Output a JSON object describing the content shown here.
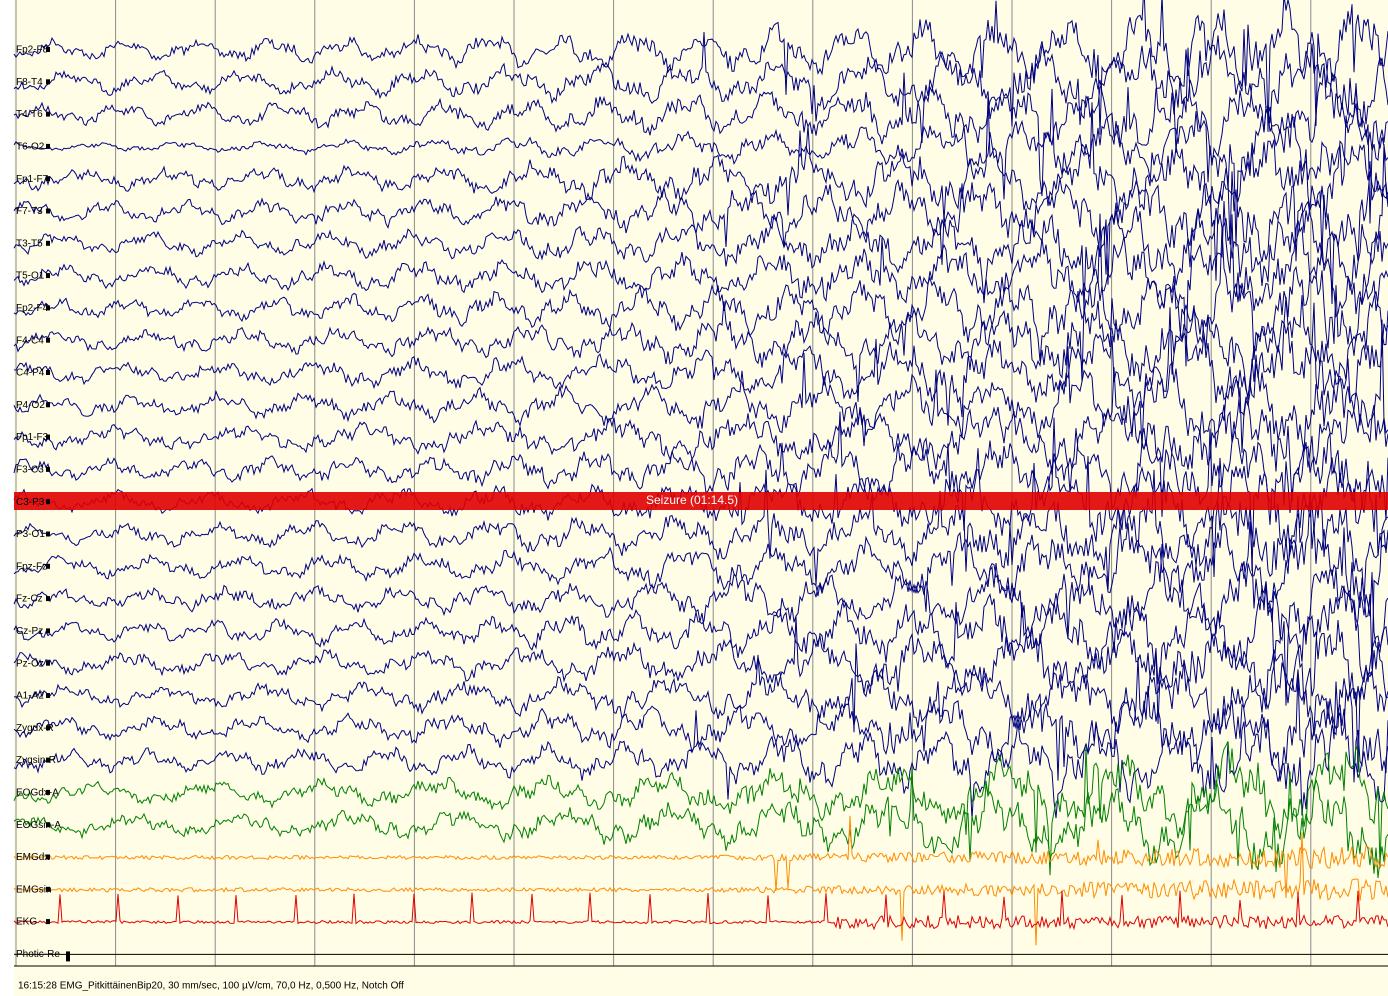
{
  "channels": [
    "Fp2-F8",
    "F8-T4",
    "T4-T6",
    "T6-O2",
    "Fp1-F7",
    "F7-T3",
    "T3-T5",
    "T5-O1",
    "Fp2-F4",
    "F4-C4",
    "C4-P4",
    "P4-O2",
    "Fp1-F3",
    "F3-C3",
    "C3-P3",
    "P3-O1",
    "Fpz-Fz",
    "Fz-Cz",
    "Cz-Pz",
    "Pz-Oz",
    "A1-A2",
    "Zygdx-R",
    "Zygsin-R",
    "EOGdx-A",
    "EOGsin-A",
    "EMGdx",
    "EMGsin",
    "EKG",
    "Photic-Re"
  ],
  "annotation": "Seizure (01:14.5)",
  "status_bar": "16:15:28 EMG_PitkittäinenBip20, 30 mm/sec, 100 µV/cm, 70,0 Hz, 0,500 Hz, Notch Off"
}
